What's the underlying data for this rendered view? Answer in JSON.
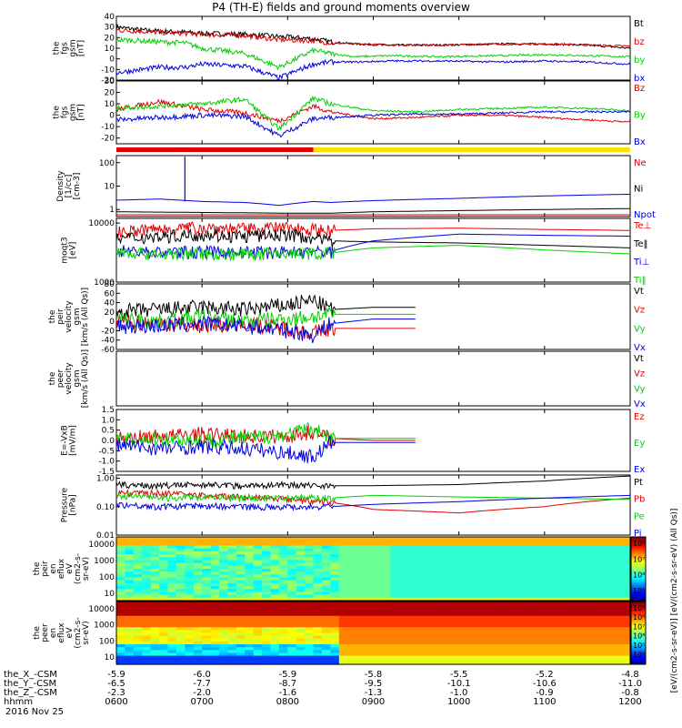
{
  "title": "P4 (TH-E) fields and ground moments overview",
  "colors": {
    "black": "#000000",
    "red": "#e00000",
    "green": "#00d000",
    "blue": "#0000e0"
  },
  "chart_data": [
    {
      "type": "line",
      "id": "p1",
      "ylabel": [
        "the",
        "fgs",
        "gsm",
        "[nT]"
      ],
      "yticks": [
        "40",
        "30",
        "20",
        "10",
        "0",
        "-10",
        "-20"
      ],
      "ylim": [
        -20,
        40
      ],
      "series": [
        {
          "name": "Bt",
          "color": "#000000",
          "x": [
            6,
            6.3,
            6.5,
            6.8,
            7,
            7.5,
            7.9,
            8.3,
            8.5,
            8.8,
            9.2,
            9.8,
            10.5,
            11,
            11.5,
            12
          ],
          "y": [
            30,
            27,
            26,
            25,
            24,
            23,
            21,
            19,
            16,
            14,
            13,
            13,
            14,
            14,
            13,
            10
          ]
        },
        {
          "name": "bz",
          "color": "#e00000",
          "x": [
            6,
            6.3,
            6.5,
            6.8,
            7,
            7.5,
            7.9,
            8.3,
            8.5,
            8.8,
            9.2,
            9.8,
            10.5,
            11,
            11.5,
            12
          ],
          "y": [
            27,
            26,
            25,
            24,
            23,
            22,
            18,
            17,
            15,
            14,
            13,
            13,
            14,
            14,
            13,
            12
          ]
        },
        {
          "name": "by",
          "color": "#00d000",
          "x": [
            6,
            6.3,
            6.5,
            6.8,
            7,
            7.5,
            7.9,
            8.3,
            8.5,
            8.8,
            9.2,
            9.8,
            10.5,
            11,
            11.5,
            12
          ],
          "y": [
            18,
            17,
            16,
            15,
            10,
            5,
            -8,
            8,
            5,
            2,
            3,
            2,
            3,
            4,
            3,
            2
          ]
        },
        {
          "name": "bx",
          "color": "#0000e0",
          "x": [
            6,
            6.3,
            6.5,
            6.8,
            7,
            7.5,
            7.9,
            8.3,
            8.5,
            8.8,
            9.2,
            9.8,
            10.5,
            11,
            11.5,
            12
          ],
          "y": [
            -13,
            -10,
            -8,
            -8,
            -5,
            -7,
            -18,
            -5,
            -3,
            -3,
            -2,
            -2,
            -3,
            -2,
            -3,
            -5
          ]
        }
      ]
    },
    {
      "type": "line",
      "id": "p2",
      "ylabel": [
        "the",
        "fgs",
        "gsm",
        "[nT]"
      ],
      "yticks": [
        "30",
        "20",
        "10",
        "0",
        "-10",
        "-20"
      ],
      "ylim": [
        -25,
        30
      ],
      "series": [
        {
          "name": "Bz",
          "color": "#e00000",
          "x": [
            6,
            6.5,
            7,
            7.5,
            7.9,
            8.3,
            8.5,
            9,
            9.5,
            10,
            10.5,
            11,
            11.5,
            12
          ],
          "y": [
            5,
            12,
            5,
            2,
            -5,
            8,
            3,
            -3,
            -2,
            0,
            0,
            -2,
            -4,
            -6
          ]
        },
        {
          "name": "By",
          "color": "#00d000",
          "x": [
            6,
            6.5,
            7,
            7.5,
            7.9,
            8.3,
            8.5,
            9,
            9.5,
            10,
            10.5,
            11,
            11.5,
            12
          ],
          "y": [
            6,
            8,
            10,
            14,
            -12,
            15,
            10,
            4,
            3,
            5,
            6,
            7,
            6,
            4
          ]
        },
        {
          "name": "Bx",
          "color": "#0000e0",
          "x": [
            6,
            6.5,
            7,
            7.5,
            7.9,
            8.3,
            8.5,
            9,
            9.5,
            10,
            10.5,
            11,
            11.5,
            12
          ],
          "y": [
            -4,
            -2,
            0,
            -1,
            -18,
            -3,
            -2,
            0,
            1,
            1,
            2,
            3,
            3,
            3
          ]
        }
      ]
    },
    {
      "type": "line",
      "id": "p3",
      "log": true,
      "ylabel": [
        "Density",
        "[1/cc]",
        "[cm-3]"
      ],
      "yticks": [
        "100",
        "10",
        "1"
      ],
      "ylim": [
        0.5,
        200
      ],
      "series": [
        {
          "name": "Ne",
          "color": "#e00000",
          "x": [
            6,
            7,
            8,
            8.5,
            9,
            10,
            11,
            12
          ],
          "y": [
            0.6,
            0.6,
            0.6,
            0.6,
            0.6,
            0.6,
            0.6,
            0.6
          ]
        },
        {
          "name": "Ni",
          "color": "#000000",
          "x": [
            6,
            7,
            8,
            8.5,
            9,
            10,
            11,
            12
          ],
          "y": [
            0.8,
            0.75,
            0.7,
            0.7,
            0.8,
            0.9,
            1.0,
            1.1
          ]
        },
        {
          "name": "Npot",
          "color": "#0000e0",
          "x": [
            6,
            6.5,
            7,
            7.5,
            7.9,
            8.3,
            8.5,
            9,
            10,
            11,
            12
          ],
          "y": [
            2.5,
            2.8,
            2.2,
            2.0,
            1.5,
            2.2,
            2.0,
            2.4,
            3.0,
            3.8,
            4.5
          ]
        }
      ]
    },
    {
      "type": "line",
      "id": "p4",
      "log": true,
      "ylabel": [
        "moqt3",
        "[eV]"
      ],
      "yticks": [
        "10000",
        "1000"
      ],
      "ylim": [
        1000,
        12000
      ],
      "series": [
        {
          "name": "Te⊥",
          "color": "#e00000",
          "x": [
            6,
            6.5,
            7,
            7.5,
            8,
            8.5,
            9,
            10,
            11,
            12
          ],
          "y": [
            7000,
            8000,
            8500,
            8000,
            8500,
            7500,
            8000,
            8200,
            7800,
            7500
          ]
        },
        {
          "name": "Te‖",
          "color": "#000000",
          "x": [
            6,
            6.5,
            7,
            7.5,
            8,
            8.5,
            9,
            10,
            11,
            12
          ],
          "y": [
            5500,
            6000,
            6500,
            6000,
            6500,
            5000,
            4800,
            4600,
            4200,
            3800
          ]
        },
        {
          "name": "Ti⊥",
          "color": "#0000e0",
          "x": [
            6,
            6.5,
            7,
            7.5,
            8,
            8.5,
            9,
            10,
            11,
            12
          ],
          "y": [
            3500,
            3200,
            3300,
            3200,
            3300,
            3300,
            5000,
            6500,
            6200,
            6000
          ]
        },
        {
          "name": "Ti‖",
          "color": "#00d000",
          "x": [
            6,
            6.5,
            7,
            7.5,
            8,
            8.5,
            9,
            10,
            11,
            12
          ],
          "y": [
            3300,
            3000,
            3100,
            3000,
            3100,
            3100,
            3800,
            4200,
            3500,
            3000
          ]
        }
      ]
    },
    {
      "type": "line",
      "id": "p5",
      "ylabel": [
        "the",
        "peir",
        "velocity",
        "gsm",
        "[km/s (All Qs)]"
      ],
      "yticks": [
        "80",
        "60",
        "40",
        "20",
        "0",
        "-20",
        "-40",
        "-60"
      ],
      "ylim": [
        -60,
        80
      ],
      "series": [
        {
          "name": "Vt",
          "color": "#000000",
          "x": [
            6,
            6.5,
            7,
            7.5,
            8,
            8.3,
            8.5,
            9,
            9.5
          ],
          "y": [
            20,
            25,
            30,
            25,
            35,
            45,
            25,
            30,
            30
          ]
        },
        {
          "name": "Vz",
          "color": "#e00000",
          "x": [
            6,
            6.5,
            7,
            7.5,
            8,
            8.3,
            8.5,
            9,
            9.5
          ],
          "y": [
            0,
            -5,
            -10,
            -5,
            -15,
            -25,
            -15,
            -15,
            -15
          ]
        },
        {
          "name": "Vy",
          "color": "#00d000",
          "x": [
            6,
            6.5,
            7,
            7.5,
            8,
            8.3,
            8.5,
            9,
            9.5
          ],
          "y": [
            5,
            0,
            10,
            0,
            5,
            10,
            15,
            15,
            15
          ]
        },
        {
          "name": "Vx",
          "color": "#0000e0",
          "x": [
            6,
            6.5,
            7,
            7.5,
            8,
            8.3,
            8.5,
            9,
            9.5
          ],
          "y": [
            -10,
            -10,
            -5,
            -10,
            -20,
            -30,
            -5,
            5,
            5
          ]
        }
      ]
    },
    {
      "type": "line",
      "id": "p6",
      "ylabel": [
        "the",
        "peer",
        "velocity",
        "gsm",
        "[km/s (All Qs)]"
      ],
      "yticks": [],
      "ylim": [
        -1,
        1
      ],
      "series": [
        {
          "name": "Vt",
          "color": "#000000",
          "x": [],
          "y": []
        },
        {
          "name": "Vz",
          "color": "#e00000",
          "x": [],
          "y": []
        },
        {
          "name": "Vy",
          "color": "#00d000",
          "x": [],
          "y": []
        },
        {
          "name": "Vx",
          "color": "#0000e0",
          "x": [],
          "y": []
        }
      ]
    },
    {
      "type": "line",
      "id": "p7",
      "ylabel": [
        "E=-VxB",
        "[mV/m]"
      ],
      "yticks": [
        "1.5",
        "1.0",
        "0.5",
        "0.0",
        "-0.5",
        "-1.0",
        "-1.5"
      ],
      "ylim": [
        -1.5,
        1.5
      ],
      "series": [
        {
          "name": "Ez",
          "color": "#e00000",
          "x": [
            6,
            6.5,
            7,
            7.5,
            8,
            8.3,
            8.5,
            9,
            9.5
          ],
          "y": [
            0.1,
            0.2,
            0.3,
            0.2,
            0.2,
            0.4,
            0.1,
            0.0,
            0.0
          ]
        },
        {
          "name": "Ey",
          "color": "#00d000",
          "x": [
            6,
            6.5,
            7,
            7.5,
            8,
            8.3,
            8.5,
            9,
            9.5
          ],
          "y": [
            0.0,
            0.1,
            0.0,
            0.1,
            0.3,
            0.6,
            0.1,
            0.1,
            0.1
          ]
        },
        {
          "name": "Ex",
          "color": "#0000e0",
          "x": [
            6,
            6.5,
            7,
            7.5,
            8,
            8.3,
            8.5,
            9,
            9.5
          ],
          "y": [
            -0.2,
            -0.4,
            -0.3,
            -0.4,
            -0.6,
            -0.8,
            -0.1,
            -0.1,
            -0.1
          ]
        }
      ]
    },
    {
      "type": "line",
      "id": "p8",
      "log": true,
      "ylabel": [
        "Pressure",
        "[nPa]"
      ],
      "yticks": [
        "1.00",
        "0.10",
        "0.01"
      ],
      "ylim": [
        0.01,
        1.3
      ],
      "series": [
        {
          "name": "Pt",
          "color": "#000000",
          "x": [
            6,
            6.5,
            7,
            7.5,
            8,
            8.5,
            9,
            10,
            11,
            12
          ],
          "y": [
            0.6,
            0.55,
            0.6,
            0.55,
            0.6,
            0.55,
            0.55,
            0.6,
            0.8,
            1.2
          ]
        },
        {
          "name": "Pb",
          "color": "#e00000",
          "x": [
            6,
            6.5,
            7,
            7.5,
            8,
            8.5,
            9,
            10,
            11,
            12
          ],
          "y": [
            0.3,
            0.3,
            0.25,
            0.22,
            0.18,
            0.14,
            0.08,
            0.06,
            0.1,
            0.2
          ]
        },
        {
          "name": "Pe",
          "color": "#00d000",
          "x": [
            6,
            6.5,
            7,
            7.5,
            8,
            8.5,
            9,
            10,
            11,
            12
          ],
          "y": [
            0.25,
            0.2,
            0.22,
            0.2,
            0.22,
            0.2,
            0.25,
            0.22,
            0.2,
            0.18
          ]
        },
        {
          "name": "Pi",
          "color": "#0000e0",
          "x": [
            6,
            6.5,
            7,
            7.5,
            8,
            8.5,
            9,
            10,
            11,
            12
          ],
          "y": [
            0.12,
            0.1,
            0.11,
            0.1,
            0.1,
            0.1,
            0.12,
            0.15,
            0.2,
            0.25
          ]
        }
      ]
    },
    {
      "type": "heatmap",
      "id": "p9",
      "ylabel": [
        "the",
        "peir",
        "en",
        "eflux",
        "eV",
        "(cm2-s-",
        "sr-eV)"
      ],
      "yticks": [
        "10000",
        "1000",
        "100",
        "10"
      ],
      "colorbar_ticks": [
        "10⁸",
        "10⁷",
        "10⁶",
        "10⁵"
      ],
      "colorbar_label": ""
    },
    {
      "type": "heatmap",
      "id": "p10",
      "ylabel": [
        "the",
        "peer",
        "en",
        "eflux",
        "eV",
        "(cm2-s-",
        "sr-eV)"
      ],
      "yticks": [
        "10000",
        "1000",
        "100",
        "10"
      ],
      "colorbar_ticks": [
        "10⁹",
        "10⁸",
        "10⁷",
        "10⁶",
        "10⁵",
        "10⁴"
      ],
      "colorbar_label": "[eV/(cm2-s-sr-eV)] [eV/(cm2-s-sr-eV) (All Qs)]"
    }
  ],
  "xaxis": {
    "rows": [
      {
        "label": "the_X_-CSM",
        "values": [
          "-5.9",
          "-6.0",
          "-5.9",
          "-5.8",
          "-5.5",
          "-5.2",
          "-4.8"
        ]
      },
      {
        "label": "the_Y_-CSM",
        "values": [
          "-6.5",
          "-7.7",
          "-8.7",
          "-9.5",
          "-10.1",
          "-10.6",
          "-11.0"
        ]
      },
      {
        "label": "the_Z_-CSM",
        "values": [
          "-2.3",
          "-2.0",
          "-1.6",
          "-1.3",
          "-1.0",
          "-0.9",
          "-0.8"
        ]
      },
      {
        "label": "hhmm",
        "values": [
          "0600",
          "0700",
          "0800",
          "0900",
          "1000",
          "1100",
          "1200"
        ]
      }
    ],
    "date": "2016 Nov 25"
  }
}
